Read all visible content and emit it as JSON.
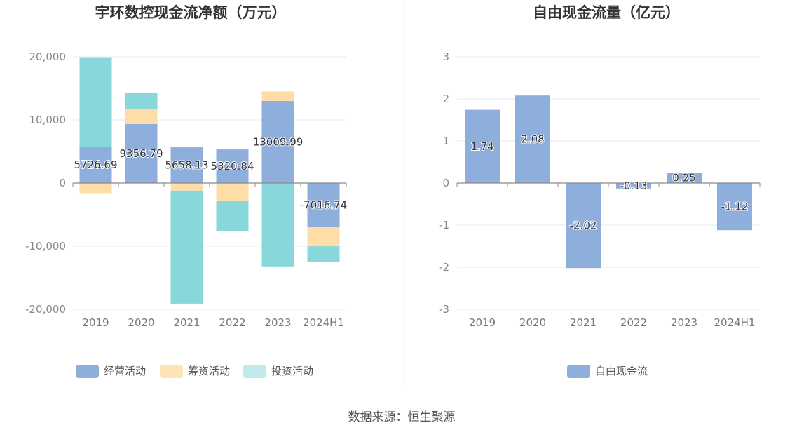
{
  "chart_data": [
    {
      "type": "bar",
      "stacked": true,
      "title": "宇环数控现金流净额（万元）",
      "categories": [
        "2019",
        "2020",
        "2021",
        "2022",
        "2023",
        "2024H1"
      ],
      "ylim": [
        -20000,
        20000
      ],
      "yticks": [
        20000,
        10000,
        0,
        -10000,
        -20000
      ],
      "ytick_labels": [
        "20,000",
        "10,000",
        "0",
        "-10,000",
        "-20,000"
      ],
      "series": [
        {
          "name": "经营活动",
          "color": "#8eaedc",
          "values": [
            5726.69,
            9356.79,
            5658.13,
            5320.84,
            13009.99,
            -7016.74
          ]
        },
        {
          "name": "筹资活动",
          "color": "#fedea6",
          "values": [
            -1600,
            2400,
            -1200,
            -2800,
            1500,
            -3000
          ]
        },
        {
          "name": "投资活动",
          "color": "#87d7db",
          "values": [
            14200,
            2500,
            -17900,
            -4800,
            -13200,
            -2500
          ]
        }
      ],
      "data_labels": [
        "5726.69",
        "9356.79",
        "5658.13",
        "5320.84",
        "13009.99",
        "-7016.74"
      ],
      "legend": [
        "经营活动",
        "筹资活动",
        "投资活动"
      ]
    },
    {
      "type": "bar",
      "title": "自由现金流量（亿元）",
      "categories": [
        "2019",
        "2020",
        "2021",
        "2022",
        "2023",
        "2024H1"
      ],
      "ylim": [
        -3,
        3
      ],
      "yticks": [
        3,
        2,
        1,
        0,
        -1,
        -2,
        -3
      ],
      "ytick_labels": [
        "3",
        "2",
        "1",
        "0",
        "-1",
        "-2",
        "-3"
      ],
      "series": [
        {
          "name": "自由现金流",
          "color": "#8eaedc",
          "values": [
            1.74,
            2.08,
            -2.02,
            -0.13,
            0.25,
            -1.12
          ]
        }
      ],
      "data_labels": [
        "1.74",
        "2.08",
        "-2.02",
        "-0.13",
        "0.25",
        "-1.12"
      ],
      "legend": [
        "自由现金流"
      ]
    }
  ],
  "source": "数据来源：恒生聚源"
}
